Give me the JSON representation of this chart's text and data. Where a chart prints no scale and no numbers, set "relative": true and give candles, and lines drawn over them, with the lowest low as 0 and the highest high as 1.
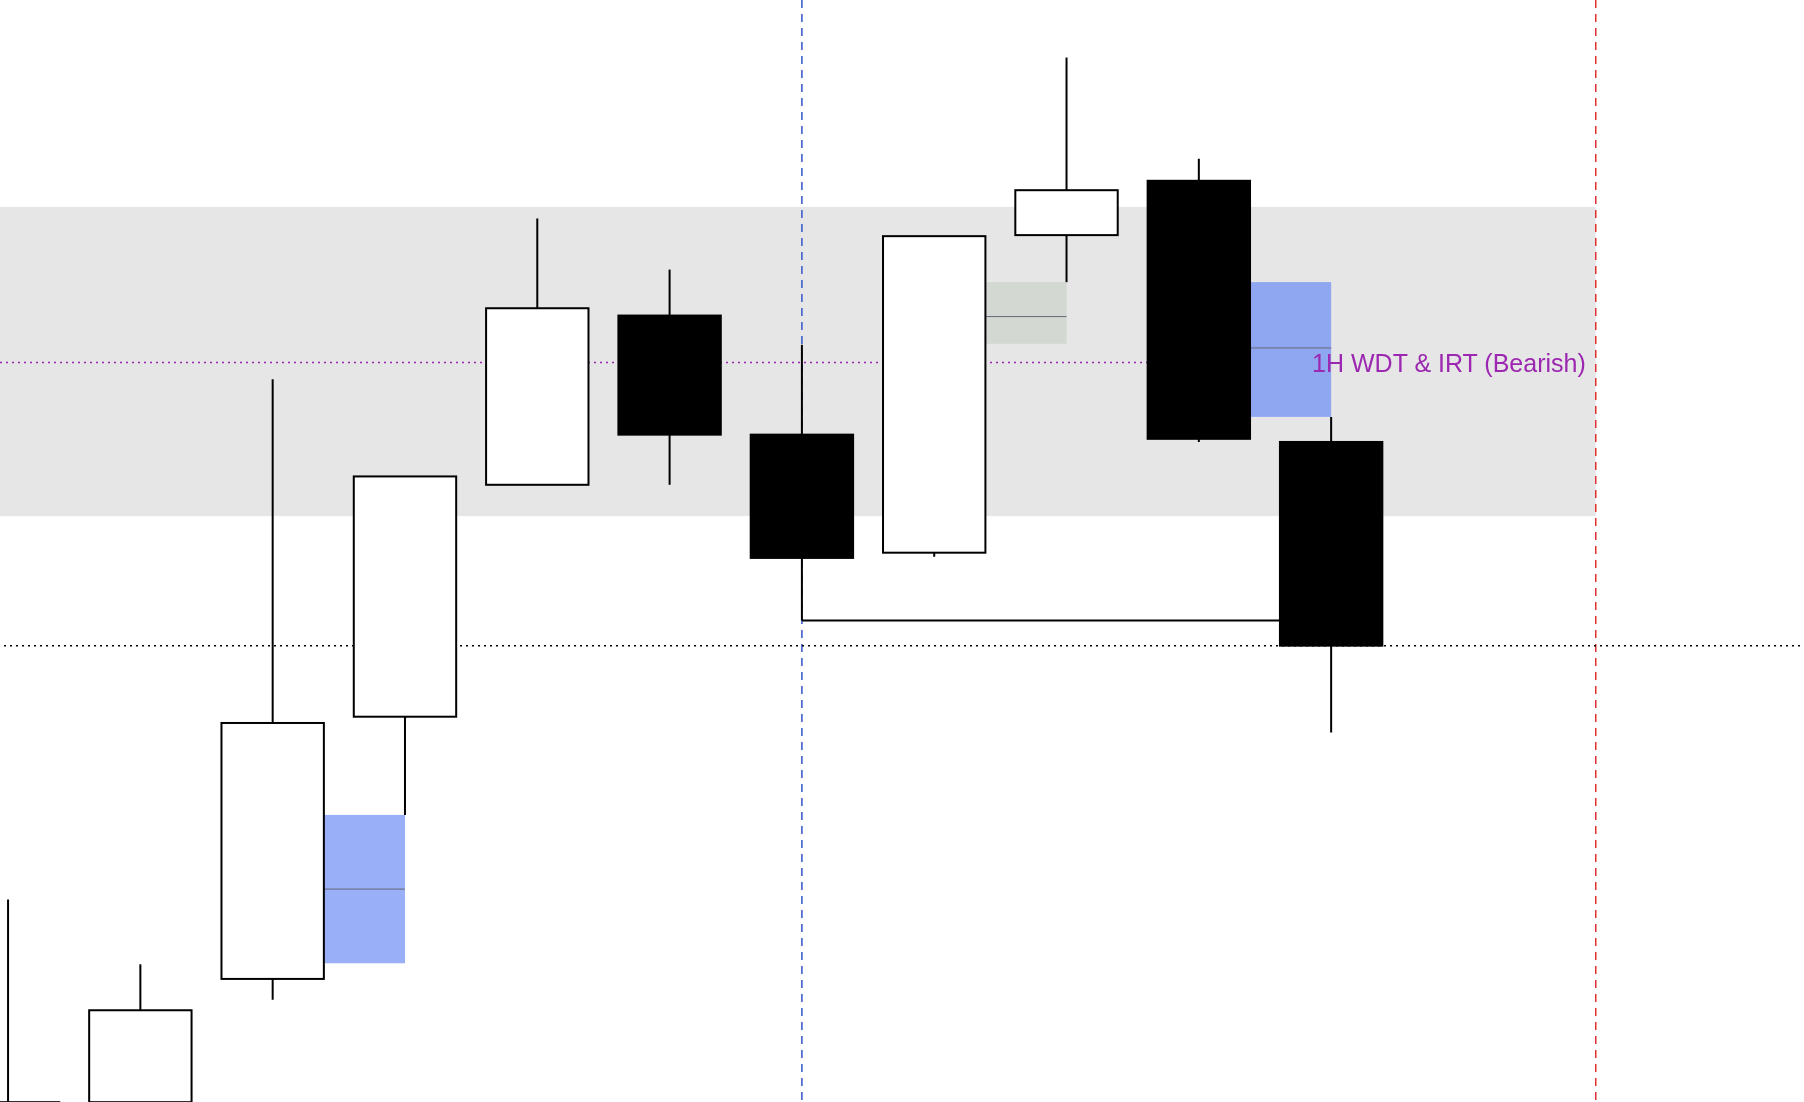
{
  "chart_data": {
    "type": "candlestick",
    "relative": true,
    "categories": [
      null,
      null,
      null,
      null,
      null,
      null,
      null,
      null,
      null,
      null,
      null,
      null,
      null
    ],
    "ohlc": [
      [
        0,
        0.194,
        0,
        0
      ],
      [
        0,
        0.132,
        0,
        0.088
      ],
      [
        0.118,
        0.692,
        0.098,
        0.363
      ],
      [
        0.369,
        0.599,
        0.275,
        0.599
      ],
      [
        0.591,
        0.846,
        0.591,
        0.76
      ],
      [
        0.753,
        0.797,
        0.591,
        0.639
      ],
      [
        0.639,
        0.725,
        0.461,
        0.521
      ],
      [
        0.526,
        0.829,
        0.522,
        0.829
      ],
      [
        0.83,
        1,
        0.785,
        0.873
      ],
      [
        0.882,
        0.903,
        0.632,
        0.635
      ],
      [
        0.632,
        0.656,
        0.354,
        0.437
      ],
      null,
      null
    ],
    "bands": [
      {
        "axis": "y",
        "from": 0.561,
        "to": 0.857,
        "color": "#e6e6e6"
      }
    ],
    "ref_lines": [
      {
        "axis": "y",
        "value": 0.708,
        "label": "1H WDT & IRT (Bearish)",
        "color": "#9c27b0",
        "line_style": "dotted"
      },
      {
        "axis": "y",
        "value": 0.437,
        "color": "#000000",
        "line_style": "dotted"
      }
    ]
  }
}
